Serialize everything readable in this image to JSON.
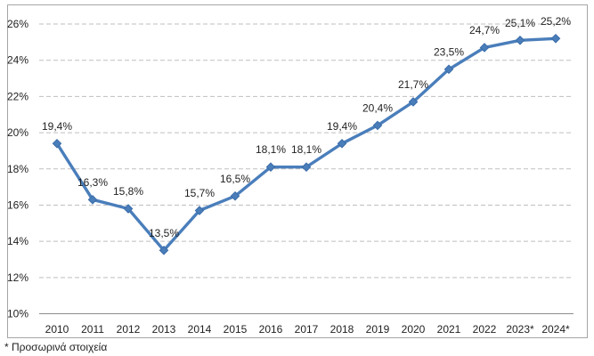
{
  "chart_data": {
    "type": "line",
    "categories": [
      "2010",
      "2011",
      "2012",
      "2013",
      "2014",
      "2015",
      "2016",
      "2017",
      "2018",
      "2019",
      "2020",
      "2021",
      "2022",
      "2023*",
      "2024*"
    ],
    "values": [
      19.4,
      16.3,
      15.8,
      13.5,
      15.7,
      16.5,
      18.1,
      18.1,
      19.4,
      20.4,
      21.7,
      23.5,
      24.7,
      25.1,
      25.2
    ],
    "point_labels": [
      "19,4%",
      "16,3%",
      "15,8%",
      "13,5%",
      "15,7%",
      "16,5%",
      "18,1%",
      "18,1%",
      "19,4%",
      "20,4%",
      "21,7%",
      "23,5%",
      "24,7%",
      "25,1%",
      "25,2%"
    ],
    "ylim": [
      10,
      26
    ],
    "ytick_step": 2,
    "ytick_labels": [
      "10%",
      "12%",
      "14%",
      "16%",
      "18%",
      "20%",
      "22%",
      "24%",
      "26%"
    ],
    "grid": "horizontal-dashed",
    "legend": "none",
    "marker": "diamond"
  },
  "footer": {
    "note": "* Προσωρινά στοιχεία"
  },
  "colors": {
    "series": "#4a7ebb",
    "marker_edge": "#3a6ca8",
    "gridline": "#bfbfbf",
    "axis_line": "#8c8c8c",
    "frame_border": "#a6a6a6",
    "text": "#1f1f1f",
    "background": "#ffffff"
  }
}
